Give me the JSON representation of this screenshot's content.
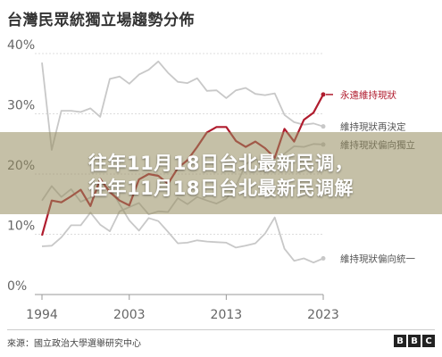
{
  "title": "台灣民眾統獨立場趨勢分佈",
  "banner": {
    "line1": "往年11月18日台北最新民调，",
    "line2": "往年11月18日台北最新民调解"
  },
  "source": "來源：國立政治大學選舉研究中心",
  "logo": [
    "B",
    "B",
    "C"
  ],
  "colors": {
    "highlight": "#b01c2e",
    "muted": "#c8c8c8",
    "axis_text": "#666666",
    "grid": "#dddddd"
  },
  "chart_data": {
    "type": "line",
    "x_ticks": [
      "1994",
      "2003",
      "2013",
      "2023"
    ],
    "y_ticks": [
      "0%",
      "10%",
      "20%",
      "30%",
      "40%"
    ],
    "xlim": [
      1994,
      2023
    ],
    "ylim": [
      0,
      40
    ],
    "series": [
      {
        "name": "永遠維持現狀",
        "highlight": true,
        "x": [
          1994,
          1995,
          1996,
          1997,
          1998,
          1999,
          2000,
          2001,
          2002,
          2003,
          2004,
          2005,
          2006,
          2007,
          2008,
          2009,
          2010,
          2011,
          2012,
          2013,
          2014,
          2015,
          2016,
          2017,
          2018,
          2019,
          2020,
          2021,
          2022,
          2023
        ],
        "values": [
          9.8,
          15.6,
          15.3,
          16.3,
          17.4,
          14.7,
          19.2,
          17.0,
          15.6,
          14.8,
          19.1,
          20.0,
          19.7,
          18.4,
          21.0,
          22.3,
          24.5,
          26.9,
          27.8,
          27.8,
          25.5,
          24.5,
          25.4,
          24.3,
          22.7,
          27.5,
          25.4,
          29.0,
          30.2,
          33.2
        ]
      },
      {
        "name": "維持現狀再決定",
        "highlight": false,
        "x": [
          1994,
          1995,
          1996,
          1997,
          1998,
          1999,
          2000,
          2001,
          2002,
          2003,
          2004,
          2005,
          2006,
          2007,
          2008,
          2009,
          2010,
          2011,
          2012,
          2013,
          2014,
          2015,
          2016,
          2017,
          2018,
          2019,
          2020,
          2021,
          2022,
          2023
        ],
        "values": [
          38.5,
          24.0,
          30.5,
          30.5,
          30.3,
          30.9,
          29.5,
          35.8,
          36.2,
          35.0,
          36.5,
          37.3,
          38.7,
          36.8,
          35.3,
          35.1,
          35.9,
          33.8,
          33.9,
          32.6,
          33.9,
          34.3,
          33.3,
          33.1,
          33.4,
          29.8,
          28.6,
          28.2,
          28.4,
          27.9
        ]
      },
      {
        "name": "維持現狀偏向獨立",
        "highlight": false,
        "x": [
          1994,
          1995,
          1996,
          1997,
          1998,
          1999,
          2000,
          2001,
          2002,
          2003,
          2004,
          2005,
          2006,
          2007,
          2008,
          2009,
          2010,
          2011,
          2012,
          2013,
          2014,
          2015,
          2016,
          2017,
          2018,
          2019,
          2020,
          2021,
          2022,
          2023
        ],
        "values": [
          8.0,
          8.1,
          9.5,
          11.5,
          11.5,
          13.6,
          11.6,
          10.5,
          13.8,
          14.5,
          15.2,
          13.3,
          13.8,
          13.7,
          16.0,
          15.0,
          16.2,
          15.6,
          15.1,
          15.9,
          18.0,
          21.6,
          22.8,
          20.3,
          22.4,
          23.4,
          24.6,
          24.5,
          25.0,
          24.9
        ]
      },
      {
        "name": "維持現狀偏向統一",
        "highlight": false,
        "x": [
          1994,
          1995,
          1996,
          1997,
          1998,
          1999,
          2000,
          2001,
          2002,
          2003,
          2004,
          2005,
          2006,
          2007,
          2008,
          2009,
          2010,
          2011,
          2012,
          2013,
          2014,
          2015,
          2016,
          2017,
          2018,
          2019,
          2020,
          2021,
          2022,
          2023
        ],
        "values": [
          15.6,
          18.0,
          16.2,
          17.5,
          15.4,
          16.1,
          17.7,
          17.8,
          15.0,
          12.3,
          10.6,
          12.7,
          12.2,
          10.4,
          8.5,
          8.6,
          9.0,
          8.8,
          8.7,
          8.6,
          7.8,
          8.1,
          8.5,
          10.1,
          12.8,
          7.6,
          5.6,
          6.0,
          5.3,
          6.0
        ]
      }
    ]
  }
}
